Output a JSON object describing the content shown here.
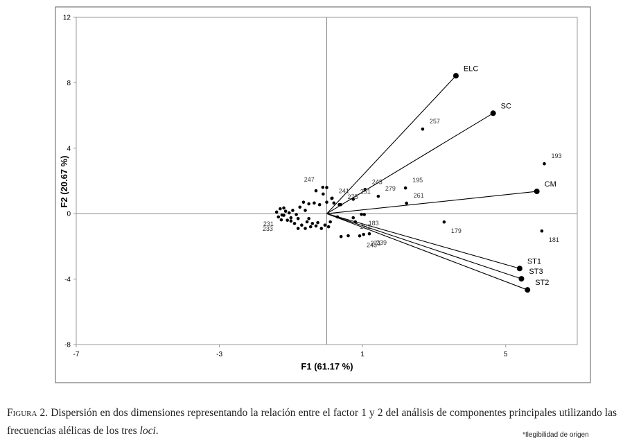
{
  "chart_data": {
    "type": "biplot",
    "x_label": "F1 (61.17 %)",
    "y_label": "F2 (20.67 %)",
    "xlim": [
      -7,
      7
    ],
    "ylim": [
      -8,
      12
    ],
    "xticks": [
      -7,
      -3,
      1,
      5
    ],
    "yticks": [
      -8,
      -4,
      0,
      4,
      8,
      12
    ],
    "color": "#000000",
    "points": {
      "labels": [
        "257",
        "193",
        "195",
        "243",
        "279",
        "261",
        "179",
        "181",
        "247",
        "241",
        "275",
        "251",
        "183",
        "281",
        "271",
        "239",
        "245",
        "231",
        "233",
        null,
        null,
        null,
        null,
        null,
        null,
        null,
        null,
        null,
        null,
        null,
        null,
        null,
        null,
        null,
        null,
        null,
        null,
        null,
        null,
        null,
        null,
        null,
        null,
        null,
        null,
        null,
        null,
        null,
        null,
        null,
        null,
        null,
        null,
        null,
        null,
        null,
        null,
        null,
        null,
        null,
        null,
        null,
        null,
        null
      ],
      "x": [
        2.68,
        6.08,
        2.2,
        1.07,
        1.44,
        2.23,
        3.28,
        6.01,
        -0.11,
        0.14,
        0.39,
        0.74,
        0.97,
        0.74,
        1.03,
        1.19,
        0.92,
        -1.25,
        -1.27,
        -1.4,
        -1.35,
        -1.3,
        -1.2,
        -1.15,
        -1.1,
        -1.05,
        -1.0,
        -0.95,
        -0.9,
        -0.85,
        -0.8,
        -0.75,
        -0.7,
        -0.65,
        -0.6,
        -0.55,
        -0.5,
        -0.45,
        -0.4,
        -0.35,
        -0.3,
        -0.25,
        -0.2,
        -0.15,
        -0.1,
        -0.05,
        0.0,
        0.05,
        0.1,
        0.15,
        0.2,
        -0.3,
        0.0,
        0.3,
        0.35,
        0.4,
        0.6,
        0.8,
        1.05,
        -1.2,
        -1.0,
        -0.8,
        -0.6,
        -0.5
      ],
      "y": [
        5.17,
        3.05,
        1.57,
        1.48,
        1.06,
        0.64,
        -0.51,
        -1.06,
        1.61,
        0.93,
        0.55,
        0.88,
        -0.04,
        -0.25,
        -1.27,
        -1.23,
        -1.36,
        -0.08,
        -0.38,
        0.1,
        -0.2,
        0.3,
        -0.1,
        0.15,
        -0.4,
        0.05,
        -0.25,
        0.2,
        -0.6,
        -0.05,
        -0.3,
        0.4,
        -0.7,
        0.7,
        -0.9,
        -0.5,
        0.6,
        -0.8,
        -0.6,
        0.65,
        -0.75,
        -0.55,
        0.55,
        -0.9,
        1.2,
        -0.7,
        0.7,
        -0.8,
        -0.5,
        0.95,
        0.65,
        1.4,
        1.6,
        -0.2,
        0.55,
        -1.4,
        -1.35,
        -0.5,
        -0.05,
        0.35,
        -0.45,
        -0.9,
        0.2,
        -0.3
      ]
    },
    "vectors": {
      "labels": [
        "ELC",
        "SC",
        "CM",
        "ST1",
        "ST3",
        "ST2"
      ],
      "x": [
        3.61,
        4.65,
        5.87,
        5.39,
        5.44,
        5.61
      ],
      "y": [
        8.43,
        6.14,
        1.36,
        -3.35,
        -3.98,
        -4.66
      ]
    }
  },
  "caption": {
    "label": "Figura 2.",
    "text": "Dispersión en dos dimensiones representando la relación entre el factor 1 y 2 del análisis de componentes principales utilizando las frecuencias alélicas de los tres",
    "italic": "loci",
    "end": "."
  },
  "note": "*Ilegibilidad de origen"
}
